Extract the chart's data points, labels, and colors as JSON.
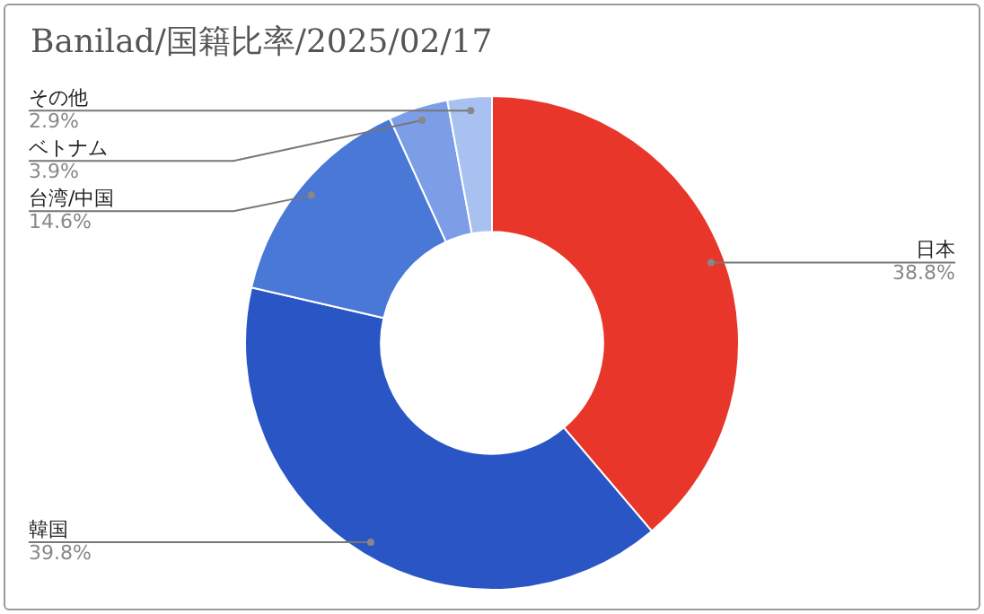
{
  "chart_data": {
    "type": "donut",
    "title": "Banilad/国籍比率/2025/02/17",
    "categories": [
      "日本",
      "韓国",
      "台湾/中国",
      "ベトナム",
      "その他"
    ],
    "values": [
      38.8,
      39.8,
      14.6,
      3.9,
      2.9
    ],
    "value_labels": [
      "38.8%",
      "39.8%",
      "14.6%",
      "3.9%",
      "2.9%"
    ],
    "colors": [
      "#e8362a",
      "#2a55c4",
      "#4a78d6",
      "#7b9ee6",
      "#a9c1f1"
    ],
    "legend": false
  }
}
